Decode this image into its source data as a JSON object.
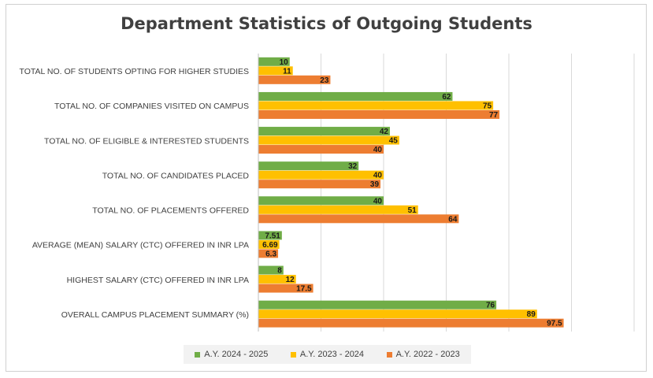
{
  "chart_data": {
    "type": "bar",
    "orientation": "horizontal",
    "title": "Department Statistics of Outgoing Students",
    "categories": [
      "TOTAL NO. OF STUDENTS OPTING FOR HIGHER STUDIES",
      "TOTAL NO. OF COMPANIES VISITED ON CAMPUS",
      "TOTAL NO. OF ELIGIBLE & INTERESTED STUDENTS",
      "TOTAL NO. OF CANDIDATES PLACED",
      "TOTAL NO. OF PLACEMENTS OFFERED",
      "AVERAGE (MEAN) SALARY (CTC) OFFERED IN INR LPA",
      "HIGHEST SALARY (CTC) OFFERED IN INR LPA",
      "OVERALL CAMPUS PLACEMENT SUMMARY (%)"
    ],
    "series": [
      {
        "name": "A.Y. 2024 - 2025",
        "color": "#70ad47",
        "values": [
          10,
          62,
          42,
          32,
          40,
          7.51,
          8,
          76
        ]
      },
      {
        "name": "A.Y. 2023 - 2024",
        "color": "#ffc000",
        "values": [
          11,
          75,
          45,
          40,
          51,
          6.69,
          12,
          89
        ]
      },
      {
        "name": "A.Y. 2022 - 2023",
        "color": "#ed7d31",
        "values": [
          23,
          77,
          40,
          39,
          64,
          6.3,
          17.5,
          97.5
        ]
      }
    ],
    "xlim": [
      0,
      120
    ],
    "grid": true,
    "axis_tick_labels_shown": false,
    "legend_position": "bottom"
  }
}
